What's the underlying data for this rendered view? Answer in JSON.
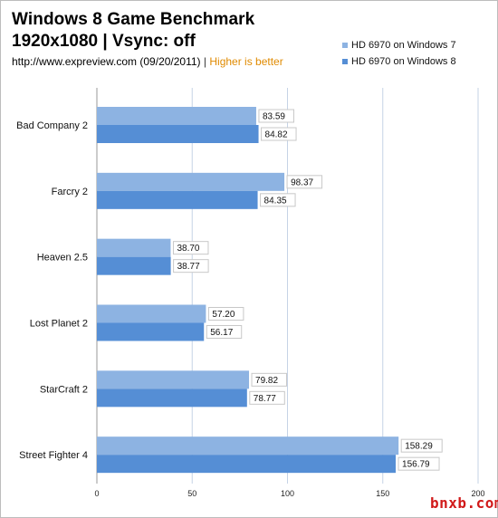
{
  "header": {
    "title": "Windows 8 Game Benchmark",
    "subtitle": "1920x1080 | Vsync:  off",
    "source_url": "http://www.expreview.com (09/20/2011)",
    "separator": "|",
    "hint": "Higher is better"
  },
  "watermark": "bnxb.com",
  "colors": {
    "series_a": "#8db3e2",
    "series_b": "#558ed5",
    "grid": "#c6d3e6"
  },
  "chart_data": {
    "type": "bar",
    "orientation": "horizontal",
    "title": "Windows 8 Game Benchmark",
    "subtitle": "1920x1080 | Vsync:  off",
    "categories": [
      "Bad Company 2",
      "Farcry 2",
      "Heaven 2.5",
      "Lost Planet 2",
      "StarCraft 2",
      "Street Fighter 4"
    ],
    "series": [
      {
        "name": "HD 6970 on Windows 7",
        "color": "#8db3e2",
        "values": [
          83.59,
          98.37,
          38.7,
          57.2,
          79.82,
          158.29
        ],
        "labels": [
          "83.59",
          "98.37",
          "38.70",
          "57.20",
          "79.82",
          "158.29"
        ]
      },
      {
        "name": "HD 6970 on Windows 8",
        "color": "#558ed5",
        "values": [
          84.82,
          84.35,
          38.77,
          56.17,
          78.77,
          156.79
        ],
        "labels": [
          "84.82",
          "84.35",
          "38.77",
          "56.17",
          "78.77",
          "156.79"
        ]
      }
    ],
    "xlim": [
      0,
      200
    ],
    "xticks": [
      0,
      50,
      100,
      150,
      200
    ],
    "xtick_labels": [
      "0",
      "50",
      "100",
      "150",
      "200"
    ],
    "grid": true,
    "legend": "top-right"
  }
}
